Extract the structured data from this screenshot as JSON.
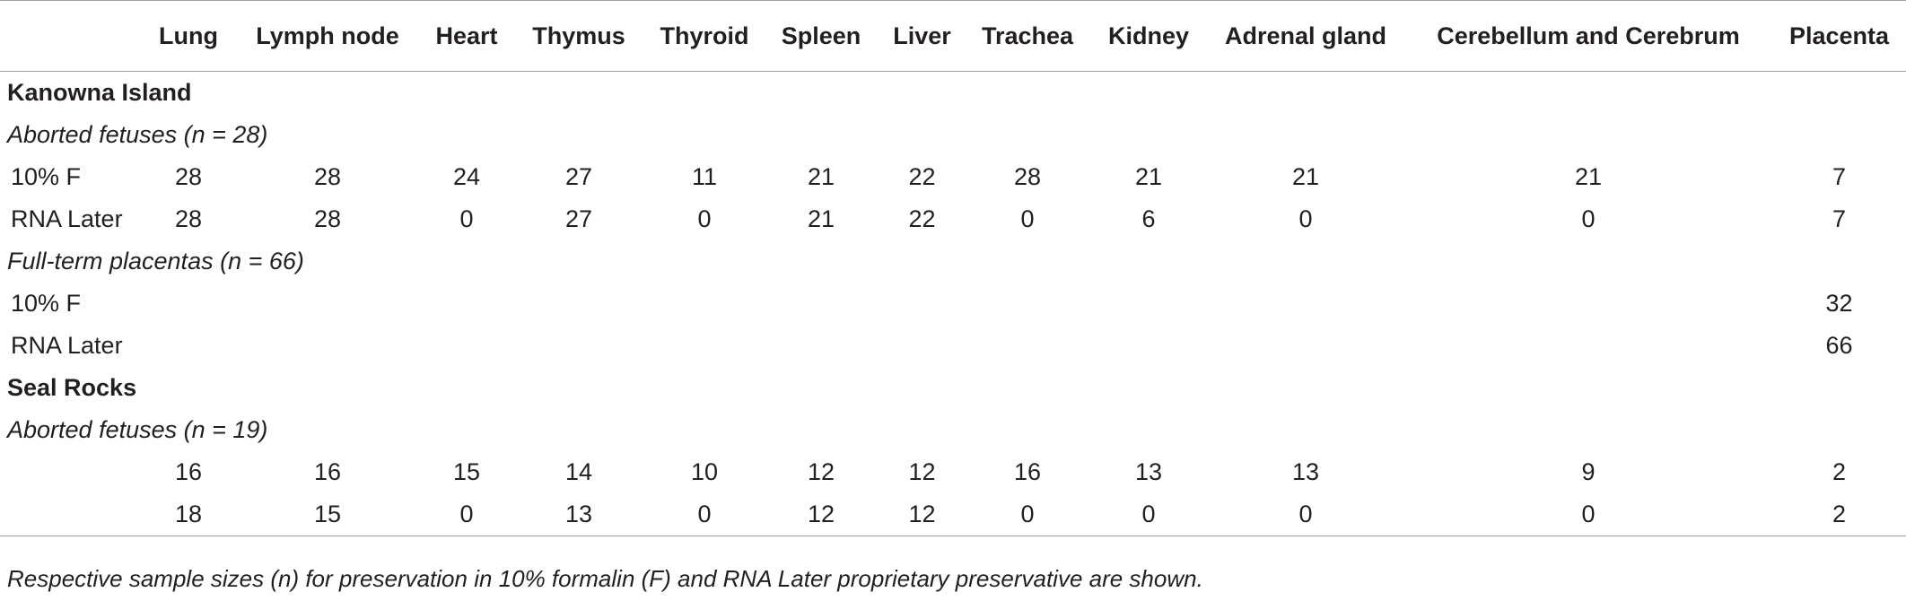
{
  "table": {
    "columns": [
      "",
      "Lung",
      "Lymph node",
      "Heart",
      "Thymus",
      "Thyroid",
      "Spleen",
      "Liver",
      "Trachea",
      "Kidney",
      "Adrenal gland",
      "Cerebellum and Cerebrum",
      "Placenta"
    ],
    "sections": [
      {
        "title": "Kanowna Island",
        "groups": [
          {
            "title": "Aborted fetuses (n = 28)",
            "rows": [
              {
                "label": "10% F",
                "values": [
                  "28",
                  "28",
                  "24",
                  "27",
                  "11",
                  "21",
                  "22",
                  "28",
                  "21",
                  "21",
                  "21",
                  "7"
                ]
              },
              {
                "label": "RNA Later",
                "values": [
                  "28",
                  "28",
                  "0",
                  "27",
                  "0",
                  "21",
                  "22",
                  "0",
                  "6",
                  "0",
                  "0",
                  "7"
                ]
              }
            ]
          },
          {
            "title": "Full-term placentas (n = 66)",
            "rows": [
              {
                "label": "10% F",
                "values": [
                  "",
                  "",
                  "",
                  "",
                  "",
                  "",
                  "",
                  "",
                  "",
                  "",
                  "",
                  "32"
                ]
              },
              {
                "label": "RNA Later",
                "values": [
                  "",
                  "",
                  "",
                  "",
                  "",
                  "",
                  "",
                  "",
                  "",
                  "",
                  "",
                  "66"
                ]
              }
            ]
          }
        ]
      },
      {
        "title": "Seal Rocks",
        "groups": [
          {
            "title": "Aborted fetuses (n = 19)",
            "rows": [
              {
                "label": "",
                "values": [
                  "16",
                  "16",
                  "15",
                  "14",
                  "10",
                  "12",
                  "12",
                  "16",
                  "13",
                  "13",
                  "9",
                  "2"
                ]
              },
              {
                "label": "",
                "values": [
                  "18",
                  "15",
                  "0",
                  "13",
                  "0",
                  "12",
                  "12",
                  "0",
                  "0",
                  "0",
                  "0",
                  "2"
                ]
              }
            ]
          }
        ]
      }
    ]
  },
  "caption": "Respective sample sizes (n) for preservation in 10% formalin (F) and RNA Later proprietary preservative are shown."
}
